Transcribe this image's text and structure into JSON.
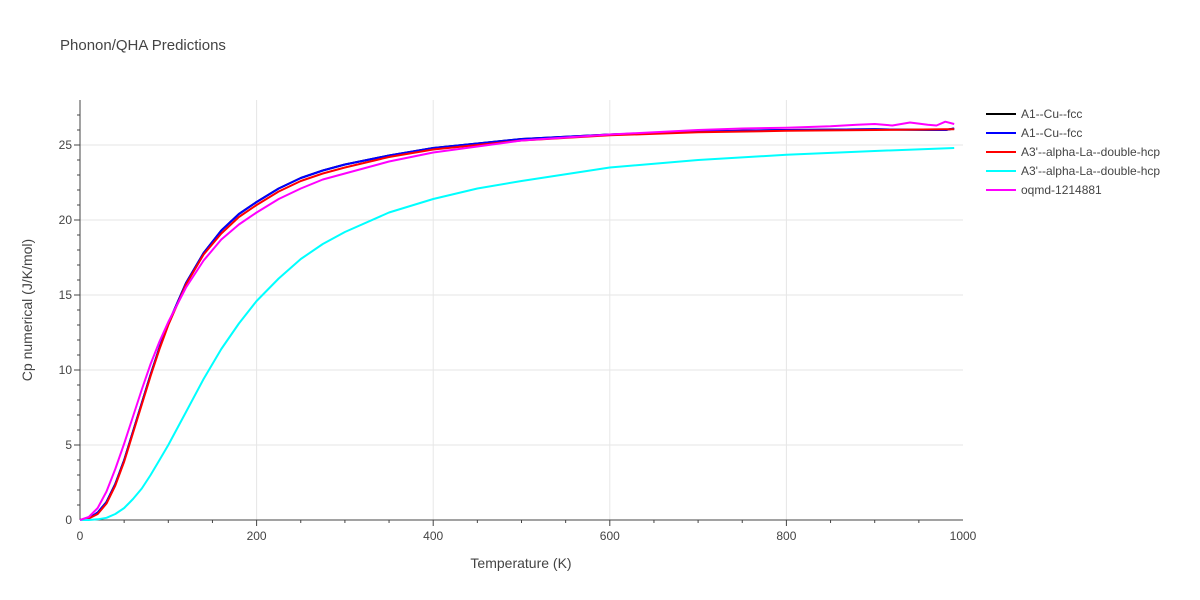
{
  "chart_data": {
    "type": "line",
    "title": "Phonon/QHA Predictions",
    "xlabel": "Temperature (K)",
    "ylabel": "Cp numerical (J/K/mol)",
    "xlim": [
      0,
      1000
    ],
    "ylim": [
      0,
      28
    ],
    "xticks": [
      0,
      200,
      400,
      600,
      800,
      1000
    ],
    "yticks": [
      0,
      5,
      10,
      15,
      20,
      25
    ],
    "grid": true,
    "legend_position": "top-right",
    "series": [
      {
        "name": "A1--Cu--fcc",
        "color": "#000000",
        "x": [
          0,
          10,
          20,
          30,
          40,
          50,
          60,
          70,
          80,
          90,
          100,
          120,
          140,
          160,
          180,
          200,
          225,
          250,
          275,
          300,
          350,
          400,
          450,
          500,
          600,
          700,
          800,
          900,
          980,
          990
        ],
        "y": [
          0,
          0.1,
          0.5,
          1.2,
          2.4,
          4.0,
          5.9,
          7.8,
          9.7,
          11.5,
          13.1,
          15.8,
          17.8,
          19.3,
          20.4,
          21.2,
          22.1,
          22.8,
          23.3,
          23.7,
          24.3,
          24.8,
          25.1,
          25.4,
          25.7,
          25.9,
          26.0,
          26.05,
          26.0,
          26.1
        ]
      },
      {
        "name": "A1--Cu--fcc",
        "color": "#0000ff",
        "x": [
          0,
          10,
          20,
          30,
          40,
          50,
          60,
          70,
          80,
          90,
          100,
          120,
          140,
          160,
          180,
          200,
          225,
          250,
          275,
          300,
          350,
          400,
          450,
          500,
          600,
          700,
          800,
          900,
          980,
          990
        ],
        "y": [
          0,
          0.1,
          0.5,
          1.2,
          2.4,
          4.0,
          5.9,
          7.8,
          9.7,
          11.5,
          13.1,
          15.8,
          17.8,
          19.3,
          20.4,
          21.2,
          22.1,
          22.8,
          23.3,
          23.7,
          24.3,
          24.8,
          25.1,
          25.4,
          25.7,
          25.9,
          26.0,
          26.05,
          26.0,
          26.1
        ]
      },
      {
        "name": "A3'--alpha-La--double-hcp",
        "color": "#ff0000",
        "x": [
          0,
          10,
          20,
          30,
          40,
          50,
          60,
          70,
          80,
          90,
          100,
          120,
          140,
          160,
          180,
          200,
          225,
          250,
          275,
          300,
          350,
          400,
          450,
          500,
          600,
          700,
          800,
          900,
          980,
          990
        ],
        "y": [
          0,
          0.1,
          0.4,
          1.1,
          2.3,
          3.9,
          5.8,
          7.7,
          9.6,
          11.4,
          13.0,
          15.7,
          17.7,
          19.1,
          20.2,
          21.0,
          21.9,
          22.6,
          23.1,
          23.5,
          24.2,
          24.7,
          25.0,
          25.3,
          25.65,
          25.85,
          25.95,
          26.0,
          26.05,
          26.05
        ]
      },
      {
        "name": "A3'--alpha-La--double-hcp",
        "color": "#00ffff",
        "x": [
          0,
          10,
          20,
          30,
          40,
          50,
          60,
          70,
          80,
          90,
          100,
          120,
          140,
          160,
          180,
          200,
          225,
          250,
          275,
          300,
          350,
          400,
          450,
          500,
          600,
          700,
          800,
          900,
          990
        ],
        "y": [
          0,
          0.0,
          0.05,
          0.15,
          0.4,
          0.8,
          1.4,
          2.1,
          3.0,
          4.0,
          5.0,
          7.2,
          9.4,
          11.4,
          13.1,
          14.6,
          16.1,
          17.4,
          18.4,
          19.2,
          20.5,
          21.4,
          22.1,
          22.6,
          23.5,
          24.0,
          24.35,
          24.6,
          24.8
        ]
      },
      {
        "name": "oqmd-1214881",
        "color": "#ff00ff",
        "x": [
          0,
          10,
          20,
          30,
          40,
          50,
          60,
          70,
          80,
          90,
          100,
          120,
          140,
          160,
          180,
          200,
          225,
          250,
          275,
          300,
          350,
          400,
          450,
          500,
          600,
          700,
          750,
          800,
          850,
          880,
          900,
          920,
          940,
          960,
          970,
          980,
          990
        ],
        "y": [
          0,
          0.2,
          0.8,
          1.9,
          3.4,
          5.1,
          6.9,
          8.7,
          10.4,
          11.9,
          13.2,
          15.5,
          17.3,
          18.7,
          19.7,
          20.5,
          21.4,
          22.1,
          22.7,
          23.1,
          23.9,
          24.5,
          24.9,
          25.3,
          25.7,
          26.0,
          26.1,
          26.15,
          26.25,
          26.35,
          26.4,
          26.3,
          26.5,
          26.35,
          26.3,
          26.55,
          26.4
        ]
      }
    ]
  }
}
